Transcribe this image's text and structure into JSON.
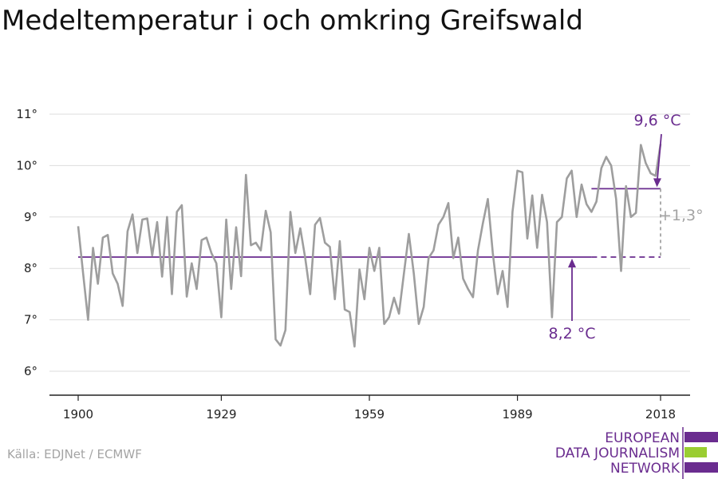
{
  "chart_data": {
    "type": "line",
    "title": "Medeltemperatur i och omkring Greifswald",
    "xlabel": "",
    "ylabel": "",
    "xlim": [
      1900,
      2018
    ],
    "ylim": [
      5.5,
      11
    ],
    "x_ticks": [
      1900,
      1929,
      1959,
      1989,
      2018
    ],
    "x_tick_labels": [
      "1900",
      "1929",
      "1959",
      "1989",
      "2018"
    ],
    "y_ticks": [
      6,
      7,
      8,
      9,
      10,
      11
    ],
    "y_tick_labels": [
      "6°",
      "7°",
      "8°",
      "9°",
      "10°",
      "11°"
    ],
    "grid": true,
    "line_color": "#9e9e9e",
    "accent_color": "#6a2c8f",
    "series": [
      {
        "x": [
          1900,
          1901,
          1902,
          1903,
          1904,
          1905,
          1906,
          1907,
          1908,
          1909,
          1910,
          1911,
          1912,
          1913,
          1914,
          1915,
          1916,
          1917,
          1918,
          1919,
          1920,
          1921,
          1922,
          1923,
          1924,
          1925,
          1926,
          1927,
          1928,
          1929,
          1930,
          1931,
          1932,
          1933,
          1934,
          1935,
          1936,
          1937,
          1938,
          1939,
          1940,
          1941,
          1942,
          1943,
          1944,
          1945,
          1946,
          1947,
          1948,
          1949,
          1950,
          1951,
          1952,
          1953,
          1954,
          1955,
          1956,
          1957,
          1958,
          1959,
          1960,
          1961,
          1962,
          1963,
          1964,
          1965,
          1966,
          1967,
          1968,
          1969,
          1970,
          1971,
          1972,
          1973,
          1974,
          1975,
          1976,
          1977,
          1978,
          1979,
          1980,
          1981,
          1982,
          1983,
          1984,
          1985,
          1986,
          1987,
          1988,
          1989,
          1990,
          1991,
          1992,
          1993,
          1994,
          1995,
          1996,
          1997,
          1998,
          1999,
          2000,
          2001,
          2002,
          2003,
          2004,
          2005,
          2006,
          2007,
          2008,
          2009,
          2010,
          2011,
          2012,
          2013,
          2014,
          2015,
          2016,
          2017,
          2018
        ],
        "values": [
          8.82,
          7.9,
          7.0,
          8.4,
          7.7,
          8.6,
          8.65,
          7.9,
          7.7,
          7.27,
          8.72,
          9.05,
          8.3,
          8.95,
          8.97,
          8.25,
          8.9,
          7.84,
          9.0,
          7.5,
          9.1,
          9.23,
          7.45,
          8.1,
          7.6,
          8.55,
          8.6,
          8.3,
          8.1,
          7.05,
          8.95,
          7.6,
          8.8,
          7.85,
          9.82,
          8.45,
          8.5,
          8.35,
          9.12,
          8.7,
          6.62,
          6.5,
          6.8,
          9.1,
          8.3,
          8.78,
          8.2,
          7.5,
          8.85,
          8.98,
          8.5,
          8.42,
          7.4,
          8.53,
          7.2,
          7.15,
          6.48,
          7.98,
          7.4,
          8.4,
          7.95,
          8.4,
          6.92,
          7.05,
          7.43,
          7.12,
          7.9,
          8.67,
          7.9,
          6.92,
          7.25,
          8.2,
          8.35,
          8.85,
          9.0,
          9.27,
          8.2,
          8.6,
          7.8,
          7.6,
          7.44,
          8.35,
          8.88,
          9.35,
          8.3,
          7.5,
          7.95,
          7.25,
          9.1,
          9.9,
          9.87,
          8.58,
          9.42,
          8.4,
          9.43,
          8.9,
          7.05,
          8.9,
          9.0,
          9.75,
          9.9,
          9.0,
          9.63,
          9.25,
          9.1,
          9.3,
          9.95,
          10.17,
          10.0,
          9.35,
          7.95,
          9.6,
          9.0,
          9.08,
          10.4,
          10.05,
          9.85,
          9.8,
          10.42
        ]
      }
    ],
    "reference_lines": [
      {
        "label": "8,2 °C",
        "value": 8.22,
        "x_start": 1900,
        "x_end": 2004,
        "dashed_to": 2018
      },
      {
        "label": "9,6 °C",
        "value": 9.55,
        "x_start": 2004,
        "x_end": 2018
      }
    ],
    "difference_annotation": "+1,3°"
  },
  "footer": {
    "source": "Källa: EDJNet / ECMWF",
    "logo_lines": [
      "EUROPEAN",
      "DATA JOURNALISM",
      "NETWORK"
    ],
    "logo_colors": [
      "#6a2c8f",
      "#9acd32",
      "#6a2c8f"
    ]
  }
}
